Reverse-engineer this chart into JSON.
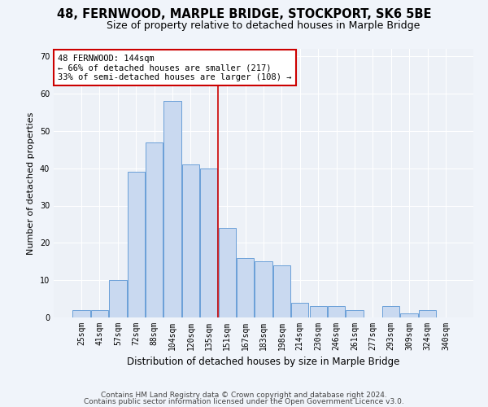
{
  "title": "48, FERNWOOD, MARPLE BRIDGE, STOCKPORT, SK6 5BE",
  "subtitle": "Size of property relative to detached houses in Marple Bridge",
  "xlabel": "Distribution of detached houses by size in Marple Bridge",
  "ylabel": "Number of detached properties",
  "categories": [
    "25sqm",
    "41sqm",
    "57sqm",
    "72sqm",
    "88sqm",
    "104sqm",
    "120sqm",
    "135sqm",
    "151sqm",
    "167sqm",
    "183sqm",
    "198sqm",
    "214sqm",
    "230sqm",
    "246sqm",
    "261sqm",
    "277sqm",
    "293sqm",
    "309sqm",
    "324sqm",
    "340sqm"
  ],
  "values": [
    2,
    2,
    10,
    39,
    47,
    58,
    41,
    40,
    24,
    16,
    15,
    14,
    4,
    3,
    3,
    2,
    0,
    3,
    1,
    2,
    0
  ],
  "bar_color": "#c9d9f0",
  "bar_edge_color": "#6a9fd8",
  "vline_x": 7.5,
  "vline_color": "#cc0000",
  "annotation_line1": "48 FERNWOOD: 144sqm",
  "annotation_line2": "← 66% of detached houses are smaller (217)",
  "annotation_line3": "33% of semi-detached houses are larger (108) →",
  "annotation_box_color": "#ffffff",
  "annotation_box_edge_color": "#cc0000",
  "ylim": [
    0,
    72
  ],
  "yticks": [
    0,
    10,
    20,
    30,
    40,
    50,
    60,
    70
  ],
  "bg_color": "#edf1f7",
  "grid_color": "#ffffff",
  "title_fontsize": 10.5,
  "subtitle_fontsize": 9,
  "xlabel_fontsize": 8.5,
  "ylabel_fontsize": 8,
  "tick_fontsize": 7,
  "annotation_fontsize": 7.5,
  "footer_fontsize": 6.5,
  "footer_line1": "Contains HM Land Registry data © Crown copyright and database right 2024.",
  "footer_line2": "Contains public sector information licensed under the Open Government Licence v3.0."
}
